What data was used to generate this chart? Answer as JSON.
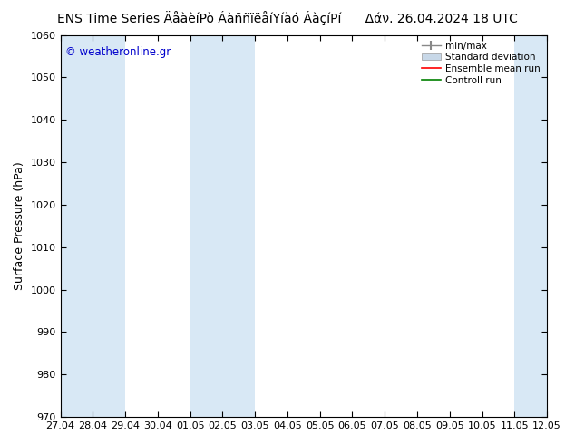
{
  "title_left": "ENS Time Series ÄåàèíPò ÁàññïëåíYíàó ÁàçíPí",
  "title_right": "Δάν. 26.04.2024 18 UTC",
  "ylabel": "Surface Pressure (hPa)",
  "ylim": [
    970,
    1060
  ],
  "yticks": [
    970,
    980,
    990,
    1000,
    1010,
    1020,
    1030,
    1040,
    1050,
    1060
  ],
  "xticklabels": [
    "27.04",
    "28.04",
    "29.04",
    "30.04",
    "01.05",
    "02.05",
    "03.05",
    "04.05",
    "05.05",
    "06.05",
    "07.05",
    "08.05",
    "09.05",
    "10.05",
    "11.05",
    "12.05"
  ],
  "background_color": "#ffffff",
  "plot_bg_color": "#ffffff",
  "blue_band_color": "#d8e8f5",
  "blue_bands": [
    0,
    1,
    4,
    5,
    14
  ],
  "legend_labels": [
    "min/max",
    "Standard deviation",
    "Ensemble mean run",
    "Controll run"
  ],
  "watermark": "© weatheronline.gr",
  "watermark_color": "#0000cc",
  "title_fontsize": 10,
  "axis_fontsize": 9,
  "tick_fontsize": 8
}
